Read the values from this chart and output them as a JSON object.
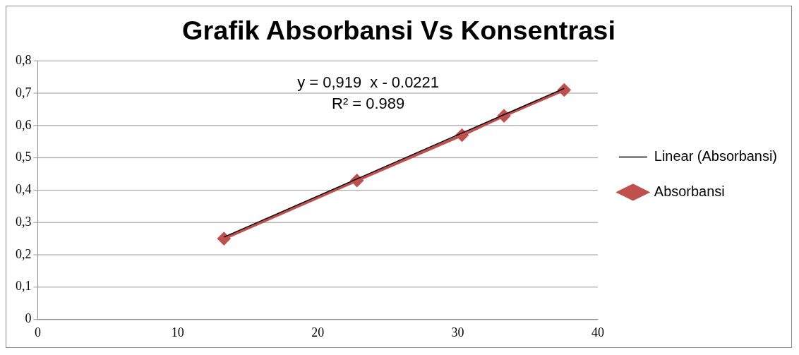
{
  "chart_data": {
    "type": "line",
    "title": "Grafik Absorbansi Vs Konsentrasi",
    "series": [
      {
        "name": "Absorbansi",
        "color": "#c0504d",
        "x": [
          13.3,
          22.8,
          30.3,
          33.3,
          37.6
        ],
        "values": [
          0.25,
          0.43,
          0.57,
          0.63,
          0.71
        ],
        "marker": "diamond"
      },
      {
        "name": "Linear (Absorbansi)",
        "color": "#000000",
        "x": [
          13.3,
          37.6
        ],
        "values": [
          0.255,
          0.715
        ],
        "marker": "none"
      }
    ],
    "annotations": [
      "y = 0,919  x - 0.0221",
      "R² = 0.989"
    ],
    "xlim": [
      0,
      40
    ],
    "xticks": [
      0,
      10,
      20,
      30,
      40
    ],
    "ylim": [
      0,
      0.8
    ],
    "yticks": [
      {
        "value": 0,
        "label": "0"
      },
      {
        "value": 0.1,
        "label": "0,1"
      },
      {
        "value": 0.2,
        "label": "0,2"
      },
      {
        "value": 0.3,
        "label": "0,3"
      },
      {
        "value": 0.4,
        "label": "0,4"
      },
      {
        "value": 0.5,
        "label": "0,5"
      },
      {
        "value": 0.6,
        "label": "0,6"
      },
      {
        "value": 0.7,
        "label": "0,7"
      },
      {
        "value": 0.8,
        "label": "0,8"
      }
    ],
    "grid": "y",
    "legend": "right"
  }
}
